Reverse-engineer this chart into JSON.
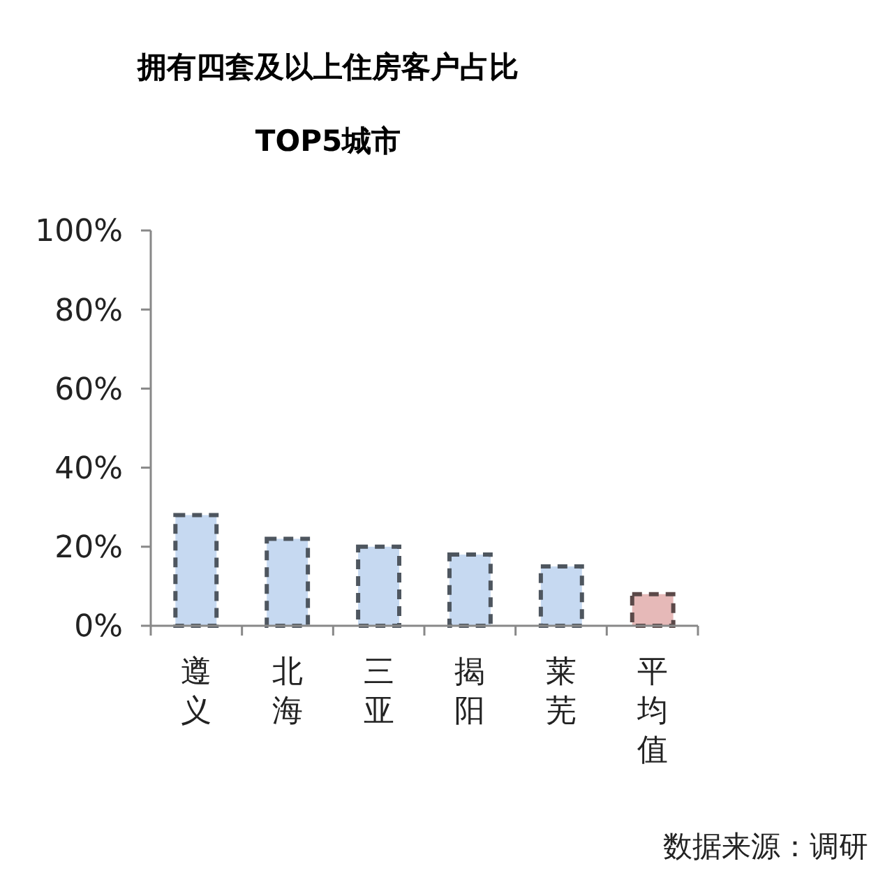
{
  "chart_data": {
    "type": "bar",
    "title": "拥有四套及以上住房客户占比",
    "subtitle": "TOP5城市",
    "categories": [
      "遵义",
      "北海",
      "三亚",
      "揭阳",
      "莱芜",
      "平均值"
    ],
    "values": [
      28,
      22,
      20,
      18,
      15,
      8
    ],
    "colors": [
      "#c6d9f1",
      "#c6d9f1",
      "#c6d9f1",
      "#c6d9f1",
      "#c6d9f1",
      "#e6b9b8"
    ],
    "line_style": "dashed",
    "ylim": [
      0,
      100
    ],
    "yticks": [
      {
        "value": 0,
        "label": "0%"
      },
      {
        "value": 20,
        "label": "20%"
      },
      {
        "value": 40,
        "label": "40%"
      },
      {
        "value": 60,
        "label": "60%"
      },
      {
        "value": 80,
        "label": "80%"
      },
      {
        "value": 100,
        "label": "100%"
      }
    ],
    "annotations": [
      "数据来源：调研"
    ]
  }
}
